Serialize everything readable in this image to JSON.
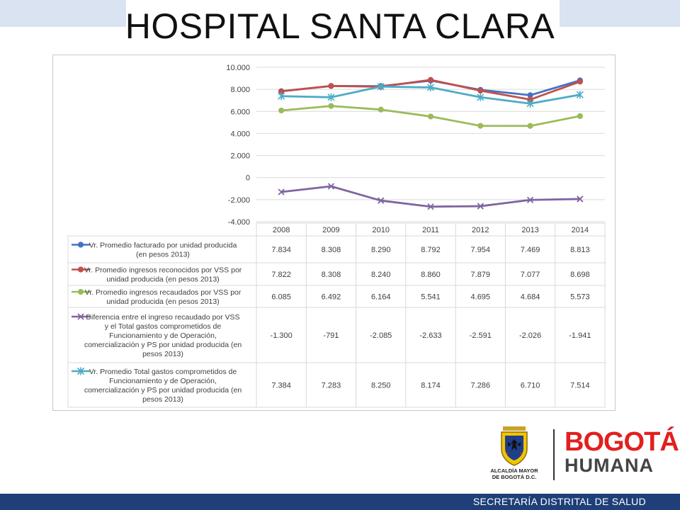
{
  "slide": {
    "title": "HOSPITAL SANTA CLARA",
    "footer": "SECRETARÍA DISTRITAL DE SALUD"
  },
  "logos": {
    "alcaldia_line1": "ALCALDÍA MAYOR",
    "alcaldia_line2": "DE BOGOTÁ D.C.",
    "bogota": "BOGOTÁ",
    "humana": "HUMANA"
  },
  "colors": {
    "footer": "#1e3f77",
    "top_band": "#d9e3f1",
    "brand_red": "#e2201f"
  },
  "chart_data": {
    "type": "line",
    "categories": [
      "2008",
      "2009",
      "2010",
      "2011",
      "2012",
      "2013",
      "2014"
    ],
    "y_ticks": [
      "10.000",
      "8.000",
      "6.000",
      "4.000",
      "2.000",
      "0",
      "-2.000",
      "-4.000"
    ],
    "ylim": [
      -4000,
      10000
    ],
    "grid": true,
    "series": [
      {
        "name": "Vr. Promedio facturado por unidad producida (en pesos 2013)",
        "label_lines": [
          "Vr. Promedio facturado por unidad producida",
          "(en pesos 2013)"
        ],
        "color": "#4472c4",
        "marker": "circle",
        "values": [
          7834,
          8308,
          8290,
          8792,
          7954,
          7469,
          8813
        ],
        "labels": [
          "7.834",
          "8.308",
          "8.290",
          "8.792",
          "7.954",
          "7.469",
          "8.813"
        ]
      },
      {
        "name": "Vr. Promedio ingresos reconocidos por VSS por unidad producida (en pesos 2013)",
        "label_lines": [
          "Vr. Promedio ingresos reconocidos por VSS por",
          "unidad producida (en pesos 2013)"
        ],
        "color": "#c0504d",
        "marker": "circle",
        "values": [
          7822,
          8308,
          8240,
          8860,
          7879,
          7077,
          8698
        ],
        "labels": [
          "7.822",
          "8.308",
          "8.240",
          "8.860",
          "7.879",
          "7.077",
          "8.698"
        ]
      },
      {
        "name": "Vr. Promedio ingresos recaudados por VSS por unidad producida (en pesos 2013)",
        "label_lines": [
          "Vr. Promedio ingresos recaudados por VSS por",
          "unidad producida (en pesos 2013)"
        ],
        "color": "#9bbb59",
        "marker": "circle",
        "values": [
          6085,
          6492,
          6164,
          5541,
          4695,
          4684,
          5573
        ],
        "labels": [
          "6.085",
          "6.492",
          "6.164",
          "5.541",
          "4.695",
          "4.684",
          "5.573"
        ]
      },
      {
        "name": "Diferencia entre el ingreso recaudado por VSS y el Total gastos comprometidos de Funcionamiento y de Operación, comercialización y PS por unidad producida (en pesos 2013)",
        "label_lines": [
          "Diferencia entre el ingreso recaudado por VSS",
          "y el Total gastos comprometidos de",
          "Funcionamiento y de Operación,",
          "comercialización y PS por unidad producida (en",
          "pesos 2013)"
        ],
        "color": "#8064a2",
        "marker": "x",
        "values": [
          -1300,
          -791,
          -2085,
          -2633,
          -2591,
          -2026,
          -1941
        ],
        "labels": [
          "-1.300",
          "-791",
          "-2.085",
          "-2.633",
          "-2.591",
          "-2.026",
          "-1.941"
        ]
      },
      {
        "name": "Vr. Promedio Total gastos comprometidos de Funcionamiento y de Operación, comercialización y PS por unidad producida (en pesos 2013)",
        "label_lines": [
          "Vr. Promedio Total gastos comprometidos de",
          "Funcionamiento y de Operación,",
          "comercialización y PS por unidad producida (en",
          "pesos 2013)"
        ],
        "color": "#4bacc6",
        "marker": "star",
        "values": [
          7384,
          7283,
          8250,
          8174,
          7286,
          6710,
          7514
        ],
        "labels": [
          "7.384",
          "7.283",
          "8.250",
          "8.174",
          "7.286",
          "6.710",
          "7.514"
        ]
      }
    ]
  }
}
